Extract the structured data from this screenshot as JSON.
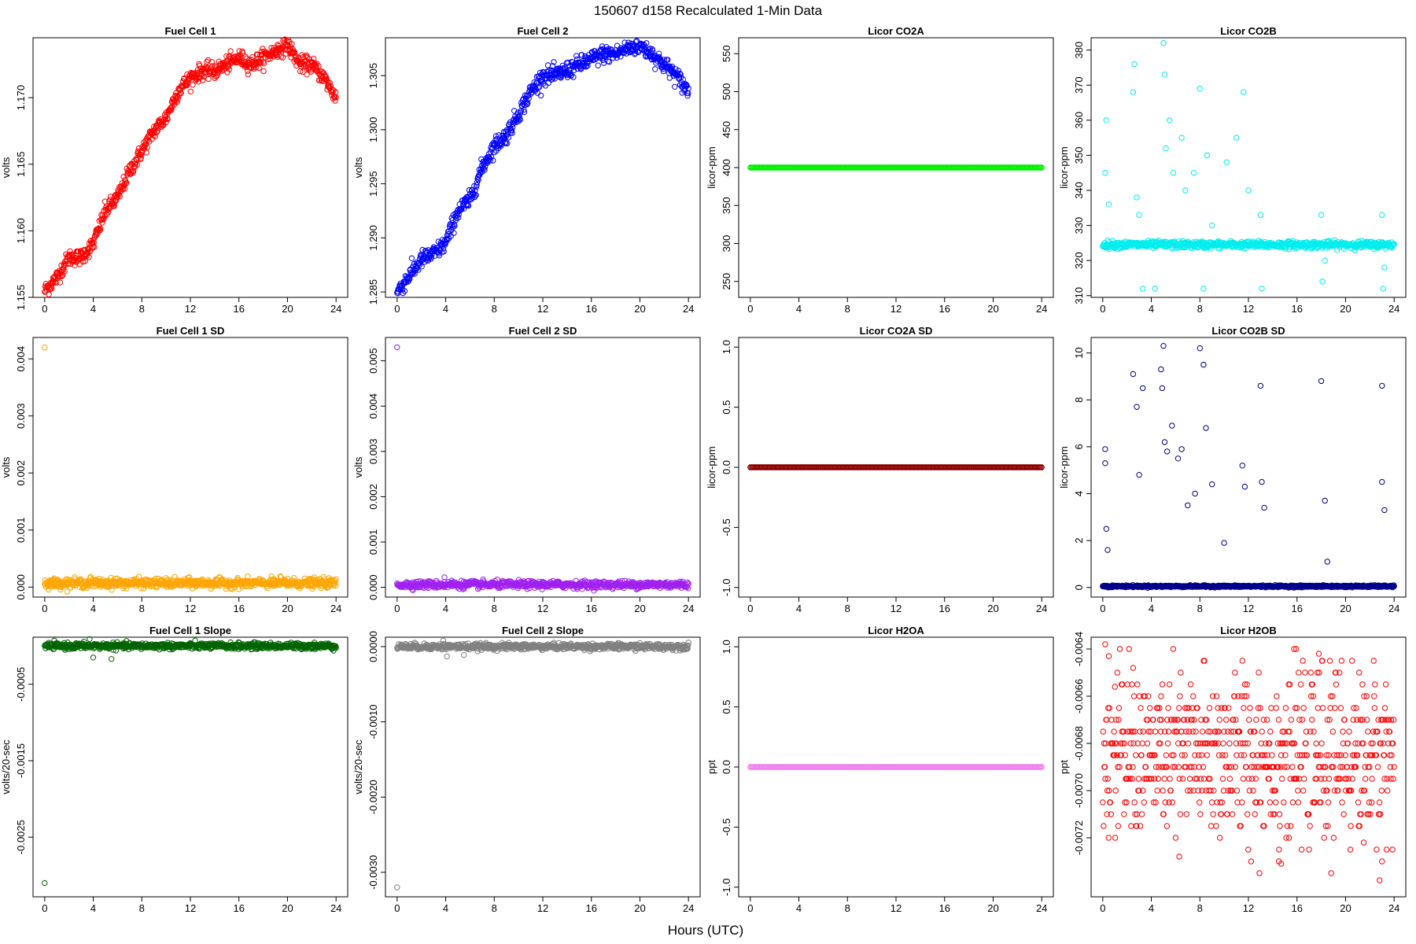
{
  "figure": {
    "title": "150607   d158   Recalculated 1-Min Data",
    "xlabel": "Hours (UTC)"
  },
  "chart_data": [
    {
      "type": "scatter",
      "title": "Fuel Cell 1",
      "ylabel": "volts",
      "color": "#ff0000",
      "xlim": [
        -0.96,
        24.96
      ],
      "ylim": [
        1.155,
        1.1745
      ],
      "xticks": [
        0,
        4,
        8,
        12,
        16,
        20,
        24
      ],
      "yticks": [
        1.155,
        1.16,
        1.165,
        1.17
      ],
      "ytick_labels": [
        "1.155",
        "1.160",
        "1.165",
        "1.170"
      ],
      "x": [
        0,
        1,
        2,
        3,
        4,
        5,
        6,
        7,
        8,
        9,
        10,
        11,
        12,
        13,
        14,
        15,
        16,
        17,
        18,
        19,
        20,
        21,
        22,
        23,
        24
      ],
      "y": [
        1.1555,
        1.1565,
        1.158,
        1.158,
        1.159,
        1.1615,
        1.1625,
        1.1645,
        1.166,
        1.1675,
        1.1685,
        1.1705,
        1.1715,
        1.172,
        1.172,
        1.1725,
        1.173,
        1.1725,
        1.173,
        1.1735,
        1.174,
        1.1725,
        1.1725,
        1.1715,
        1.17
      ],
      "noise": 0.0003
    },
    {
      "type": "scatter",
      "title": "Fuel Cell 2",
      "ylabel": "volts",
      "color": "#0000ff",
      "xlim": [
        -0.96,
        24.96
      ],
      "ylim": [
        1.2845,
        1.3085
      ],
      "xticks": [
        0,
        4,
        8,
        12,
        16,
        20,
        24
      ],
      "yticks": [
        1.285,
        1.29,
        1.295,
        1.3,
        1.305
      ],
      "ytick_labels": [
        "1.285",
        "1.290",
        "1.295",
        "1.300",
        "1.305"
      ],
      "x": [
        0,
        1,
        2,
        3,
        4,
        5,
        6,
        7,
        8,
        9,
        10,
        11,
        12,
        13,
        14,
        15,
        16,
        17,
        18,
        19,
        20,
        21,
        22,
        23,
        24
      ],
      "y": [
        1.285,
        1.2865,
        1.288,
        1.2885,
        1.2895,
        1.2925,
        1.2935,
        1.2965,
        1.2985,
        1.2995,
        1.3015,
        1.3035,
        1.305,
        1.305,
        1.3055,
        1.306,
        1.3065,
        1.307,
        1.307,
        1.3075,
        1.3078,
        1.307,
        1.306,
        1.305,
        1.3035
      ],
      "noise": 0.0004
    },
    {
      "type": "scatter",
      "title": "Licor CO2A",
      "ylabel": "licor-ppm",
      "color": "#00ee00",
      "xlim": [
        -0.96,
        24.96
      ],
      "ylim": [
        229,
        571
      ],
      "xticks": [
        0,
        4,
        8,
        12,
        16,
        20,
        24
      ],
      "yticks": [
        250,
        300,
        350,
        400,
        450,
        500,
        550
      ],
      "ytick_labels": [
        "250",
        "300",
        "350",
        "400",
        "450",
        "500",
        "550"
      ],
      "x": [
        0,
        24
      ],
      "y": [
        400,
        400
      ],
      "constant": true
    },
    {
      "type": "scatter",
      "title": "Licor CO2B",
      "ylabel": "licor-ppm",
      "color": "#00eeee",
      "xlim": [
        -0.96,
        24.96
      ],
      "ylim": [
        309.5,
        383.5
      ],
      "xticks": [
        0,
        4,
        8,
        12,
        16,
        20,
        24
      ],
      "yticks": [
        310,
        320,
        330,
        340,
        350,
        360,
        370,
        380
      ],
      "ytick_labels": [
        "310",
        "320",
        "330",
        "340",
        "350",
        "360",
        "370",
        "380"
      ],
      "x": [
        0,
        24
      ],
      "y": [
        324.5,
        324.5
      ],
      "outliers": [
        [
          0.2,
          345
        ],
        [
          0.3,
          360
        ],
        [
          0.5,
          336
        ],
        [
          2.5,
          368
        ],
        [
          2.6,
          376
        ],
        [
          2.8,
          338
        ],
        [
          3.0,
          333
        ],
        [
          3.3,
          312
        ],
        [
          4.3,
          312
        ],
        [
          5.0,
          382
        ],
        [
          5.1,
          373
        ],
        [
          5.2,
          352
        ],
        [
          5.5,
          360
        ],
        [
          5.8,
          345
        ],
        [
          6.5,
          355
        ],
        [
          6.8,
          340
        ],
        [
          7.5,
          345
        ],
        [
          8.0,
          369
        ],
        [
          8.3,
          312
        ],
        [
          8.6,
          350
        ],
        [
          9.0,
          330
        ],
        [
          10.2,
          348
        ],
        [
          11.0,
          355
        ],
        [
          11.6,
          368
        ],
        [
          12.0,
          340
        ],
        [
          13.0,
          333
        ],
        [
          13.1,
          312
        ],
        [
          18.0,
          333
        ],
        [
          18.1,
          314
        ],
        [
          18.3,
          320
        ],
        [
          23.0,
          333
        ],
        [
          23.1,
          312
        ],
        [
          23.2,
          318
        ]
      ],
      "noise": 0.5
    },
    {
      "type": "scatter",
      "title": "Fuel Cell 1 SD",
      "ylabel": "volts",
      "color": "#ffa500",
      "xlim": [
        -0.96,
        24.96
      ],
      "ylim": [
        -0.000175,
        0.004375
      ],
      "xticks": [
        0,
        4,
        8,
        12,
        16,
        20,
        24
      ],
      "yticks": [
        0,
        0.001,
        0.002,
        0.003,
        0.004
      ],
      "ytick_labels": [
        "0.000",
        "0.001",
        "0.002",
        "0.003",
        "0.004"
      ],
      "x": [
        0,
        24
      ],
      "y": [
        7e-05,
        7e-05
      ],
      "outliers": [
        [
          0.0,
          0.0042
        ],
        [
          3.8,
          0.00018
        ],
        [
          5.8,
          0.00015
        ],
        [
          12.0,
          0.00012
        ],
        [
          19.4,
          0.00019
        ],
        [
          20.0,
          0.00015
        ],
        [
          22.5,
          0.00013
        ]
      ],
      "noise": 4e-05
    },
    {
      "type": "scatter",
      "title": "Fuel Cell 2 SD",
      "ylabel": "volts",
      "color": "#a020f0",
      "xlim": [
        -0.96,
        24.96
      ],
      "ylim": [
        -0.000215,
        0.005515
      ],
      "xticks": [
        0,
        4,
        8,
        12,
        16,
        20,
        24
      ],
      "yticks": [
        0,
        0.001,
        0.002,
        0.003,
        0.004,
        0.005
      ],
      "ytick_labels": [
        "0.000",
        "0.001",
        "0.002",
        "0.003",
        "0.004",
        "0.005"
      ],
      "x": [
        0,
        24
      ],
      "y": [
        6e-05,
        6e-05
      ],
      "outliers": [
        [
          0.0,
          0.0053
        ],
        [
          3.9,
          0.00022
        ],
        [
          4.5,
          0.00015
        ],
        [
          6.0,
          0.00013
        ]
      ],
      "noise": 4e-05
    },
    {
      "type": "scatter",
      "title": "Licor CO2A SD",
      "ylabel": "licor-ppm",
      "color": "#8b0000",
      "xlim": [
        -0.96,
        24.96
      ],
      "ylim": [
        -1.08,
        1.08
      ],
      "xticks": [
        0,
        4,
        8,
        12,
        16,
        20,
        24
      ],
      "yticks": [
        -1.0,
        -0.5,
        0.0,
        0.5,
        1.0
      ],
      "ytick_labels": [
        "-1.0",
        "-0.5",
        "0.0",
        "0.5",
        "1.0"
      ],
      "x": [
        0,
        24
      ],
      "y": [
        0,
        0
      ],
      "constant": true
    },
    {
      "type": "scatter",
      "title": "Licor CO2B SD",
      "ylabel": "licor-ppm",
      "color": "#00008b",
      "xlim": [
        -0.96,
        24.96
      ],
      "ylim": [
        -0.41,
        10.66
      ],
      "xticks": [
        0,
        4,
        8,
        12,
        16,
        20,
        24
      ],
      "yticks": [
        0,
        2,
        4,
        6,
        8,
        10
      ],
      "ytick_labels": [
        "0",
        "2",
        "4",
        "6",
        "8",
        "10"
      ],
      "x": [
        0,
        24
      ],
      "y": [
        0.05,
        0.05
      ],
      "outliers": [
        [
          0.2,
          5.9
        ],
        [
          0.2,
          5.3
        ],
        [
          0.3,
          2.5
        ],
        [
          0.4,
          1.6
        ],
        [
          2.5,
          9.1
        ],
        [
          2.8,
          7.7
        ],
        [
          3.0,
          4.8
        ],
        [
          3.3,
          8.5
        ],
        [
          4.8,
          9.3
        ],
        [
          4.9,
          8.5
        ],
        [
          5.0,
          10.3
        ],
        [
          5.1,
          6.2
        ],
        [
          5.3,
          5.8
        ],
        [
          5.7,
          6.9
        ],
        [
          6.2,
          5.5
        ],
        [
          6.5,
          5.9
        ],
        [
          7.0,
          3.5
        ],
        [
          7.6,
          4.0
        ],
        [
          8.0,
          10.2
        ],
        [
          8.3,
          9.5
        ],
        [
          8.5,
          6.8
        ],
        [
          9.0,
          4.4
        ],
        [
          10.0,
          1.9
        ],
        [
          11.5,
          5.2
        ],
        [
          11.7,
          4.3
        ],
        [
          13.0,
          8.6
        ],
        [
          13.1,
          4.5
        ],
        [
          13.3,
          3.4
        ],
        [
          18.0,
          8.8
        ],
        [
          18.3,
          3.7
        ],
        [
          18.5,
          1.1
        ],
        [
          23.0,
          8.6
        ],
        [
          23.2,
          3.3
        ],
        [
          23.0,
          4.5
        ]
      ],
      "noise": 0.02
    },
    {
      "type": "scatter",
      "title": "Fuel Cell 1 Slope",
      "ylabel": "volts/20-sec",
      "color": "#006400",
      "xlim": [
        -0.96,
        24.96
      ],
      "ylim": [
        -0.00328,
        0.000115
      ],
      "xticks": [
        0,
        4,
        8,
        12,
        16,
        20,
        24
      ],
      "yticks": [
        -0.0025,
        -0.0015,
        -0.0005
      ],
      "ytick_labels": [
        "-0.0025",
        "-0.0015",
        "-0.0005"
      ],
      "x": [
        0,
        24
      ],
      "y": [
        0,
        0
      ],
      "outliers": [
        [
          0.0,
          -0.0031
        ],
        [
          3.7,
          9e-05
        ],
        [
          4.0,
          -0.00015
        ],
        [
          5.5,
          -0.00017
        ]
      ],
      "noise": 2e-05
    },
    {
      "type": "scatter",
      "title": "Fuel Cell 2 Slope",
      "ylabel": "volts/20-sec",
      "color": "#808080",
      "xlim": [
        -0.96,
        24.96
      ],
      "ylim": [
        -0.003325,
        0.000125
      ],
      "xticks": [
        0,
        4,
        8,
        12,
        16,
        20,
        24
      ],
      "yticks": [
        -0.003,
        -0.002,
        -0.001,
        0.0
      ],
      "ytick_labels": [
        "-0.0030",
        "-0.0020",
        "-0.0010",
        "0.0000"
      ],
      "x": [
        0,
        24
      ],
      "y": [
        0,
        0
      ],
      "outliers": [
        [
          0.0,
          -0.0032
        ],
        [
          3.8,
          8e-05
        ],
        [
          4.1,
          -0.00013
        ],
        [
          5.5,
          -0.00011
        ]
      ],
      "noise": 2e-05
    },
    {
      "type": "scatter",
      "title": "Licor H2OA",
      "ylabel": "ppt",
      "color": "#ee82ee",
      "xlim": [
        -0.96,
        24.96
      ],
      "ylim": [
        -1.08,
        1.08
      ],
      "xticks": [
        0,
        4,
        8,
        12,
        16,
        20,
        24
      ],
      "yticks": [
        -1.0,
        -0.5,
        0.0,
        0.5,
        1.0
      ],
      "ytick_labels": [
        "-1.0",
        "-0.5",
        "0.0",
        "0.5",
        "1.0"
      ],
      "x": [
        0,
        24
      ],
      "y": [
        0,
        0
      ],
      "constant": true
    },
    {
      "type": "scatter",
      "title": "Licor H2OB",
      "ylabel": "ppt",
      "color": "#ff0000",
      "xlim": [
        -0.96,
        24.96
      ],
      "ylim": [
        -0.00745,
        -0.00635
      ],
      "xticks": [
        0,
        4,
        8,
        12,
        16,
        20,
        24
      ],
      "yticks": [
        -0.0072,
        -0.007,
        -0.0068,
        -0.0066,
        -0.0064
      ],
      "ytick_labels": [
        "-0.0072",
        "-0.0070",
        "-0.0068",
        "-0.0066",
        "-0.0064"
      ],
      "x": [
        0,
        24
      ],
      "y": [
        -0.00685,
        -0.00685
      ],
      "outliers": [
        [
          0.2,
          -0.00638
        ],
        [
          0.5,
          -0.00643
        ],
        [
          1.0,
          -0.00656
        ],
        [
          2.5,
          -0.00648
        ],
        [
          6.3,
          -0.00728
        ],
        [
          14.5,
          -0.0073
        ],
        [
          14.7,
          -0.00731
        ],
        [
          17.8,
          -0.00642
        ],
        [
          22.8,
          -0.00738
        ],
        [
          21.5,
          -0.00722
        ]
      ],
      "noise": 0.00018,
      "quantize": 5e-05
    }
  ]
}
